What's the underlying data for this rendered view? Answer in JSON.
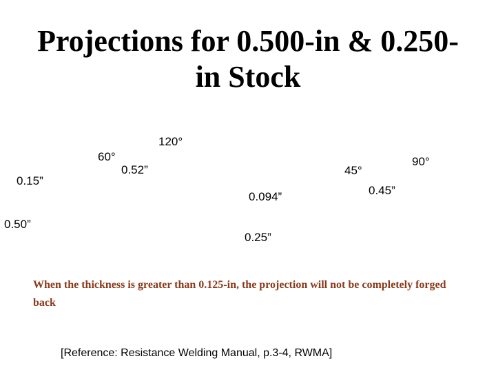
{
  "title": {
    "line1": "Projections for 0.500-in & 0.250-",
    "line2": "in Stock"
  },
  "diagram": {
    "left_projection": {
      "angle": "60°",
      "diameter": "0.52”",
      "height": "0.15”",
      "thickness": "0.50”"
    },
    "middle_projection": {
      "angle": "120°",
      "height": "0.094”",
      "thickness": "0.25”"
    },
    "right_projection": {
      "angle_a": "45°",
      "angle_b": "90°",
      "diameter": "0.45”"
    }
  },
  "note": "When the thickness is greater than 0.125-in, the projection will not be completely forged back",
  "reference": "[Reference:  Resistance Welding Manual, p.3-4, RWMA]",
  "colors": {
    "note": "#8b3a1a"
  }
}
